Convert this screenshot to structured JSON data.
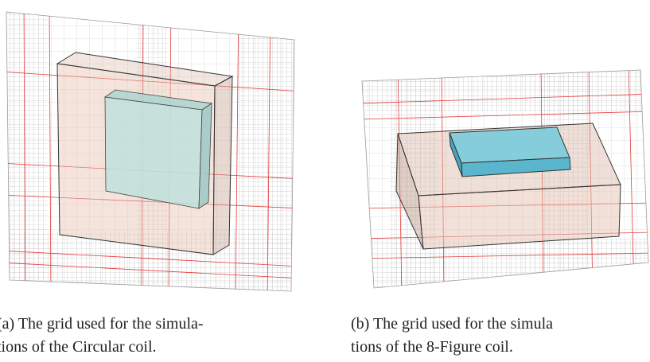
{
  "figures": [
    {
      "caption": [
        "(a) The grid used for the simula-",
        "tions of the Circular coil."
      ]
    },
    {
      "caption": [
        "(b) The grid used for the simula",
        "tions of the 8-Figure coil."
      ]
    }
  ]
}
